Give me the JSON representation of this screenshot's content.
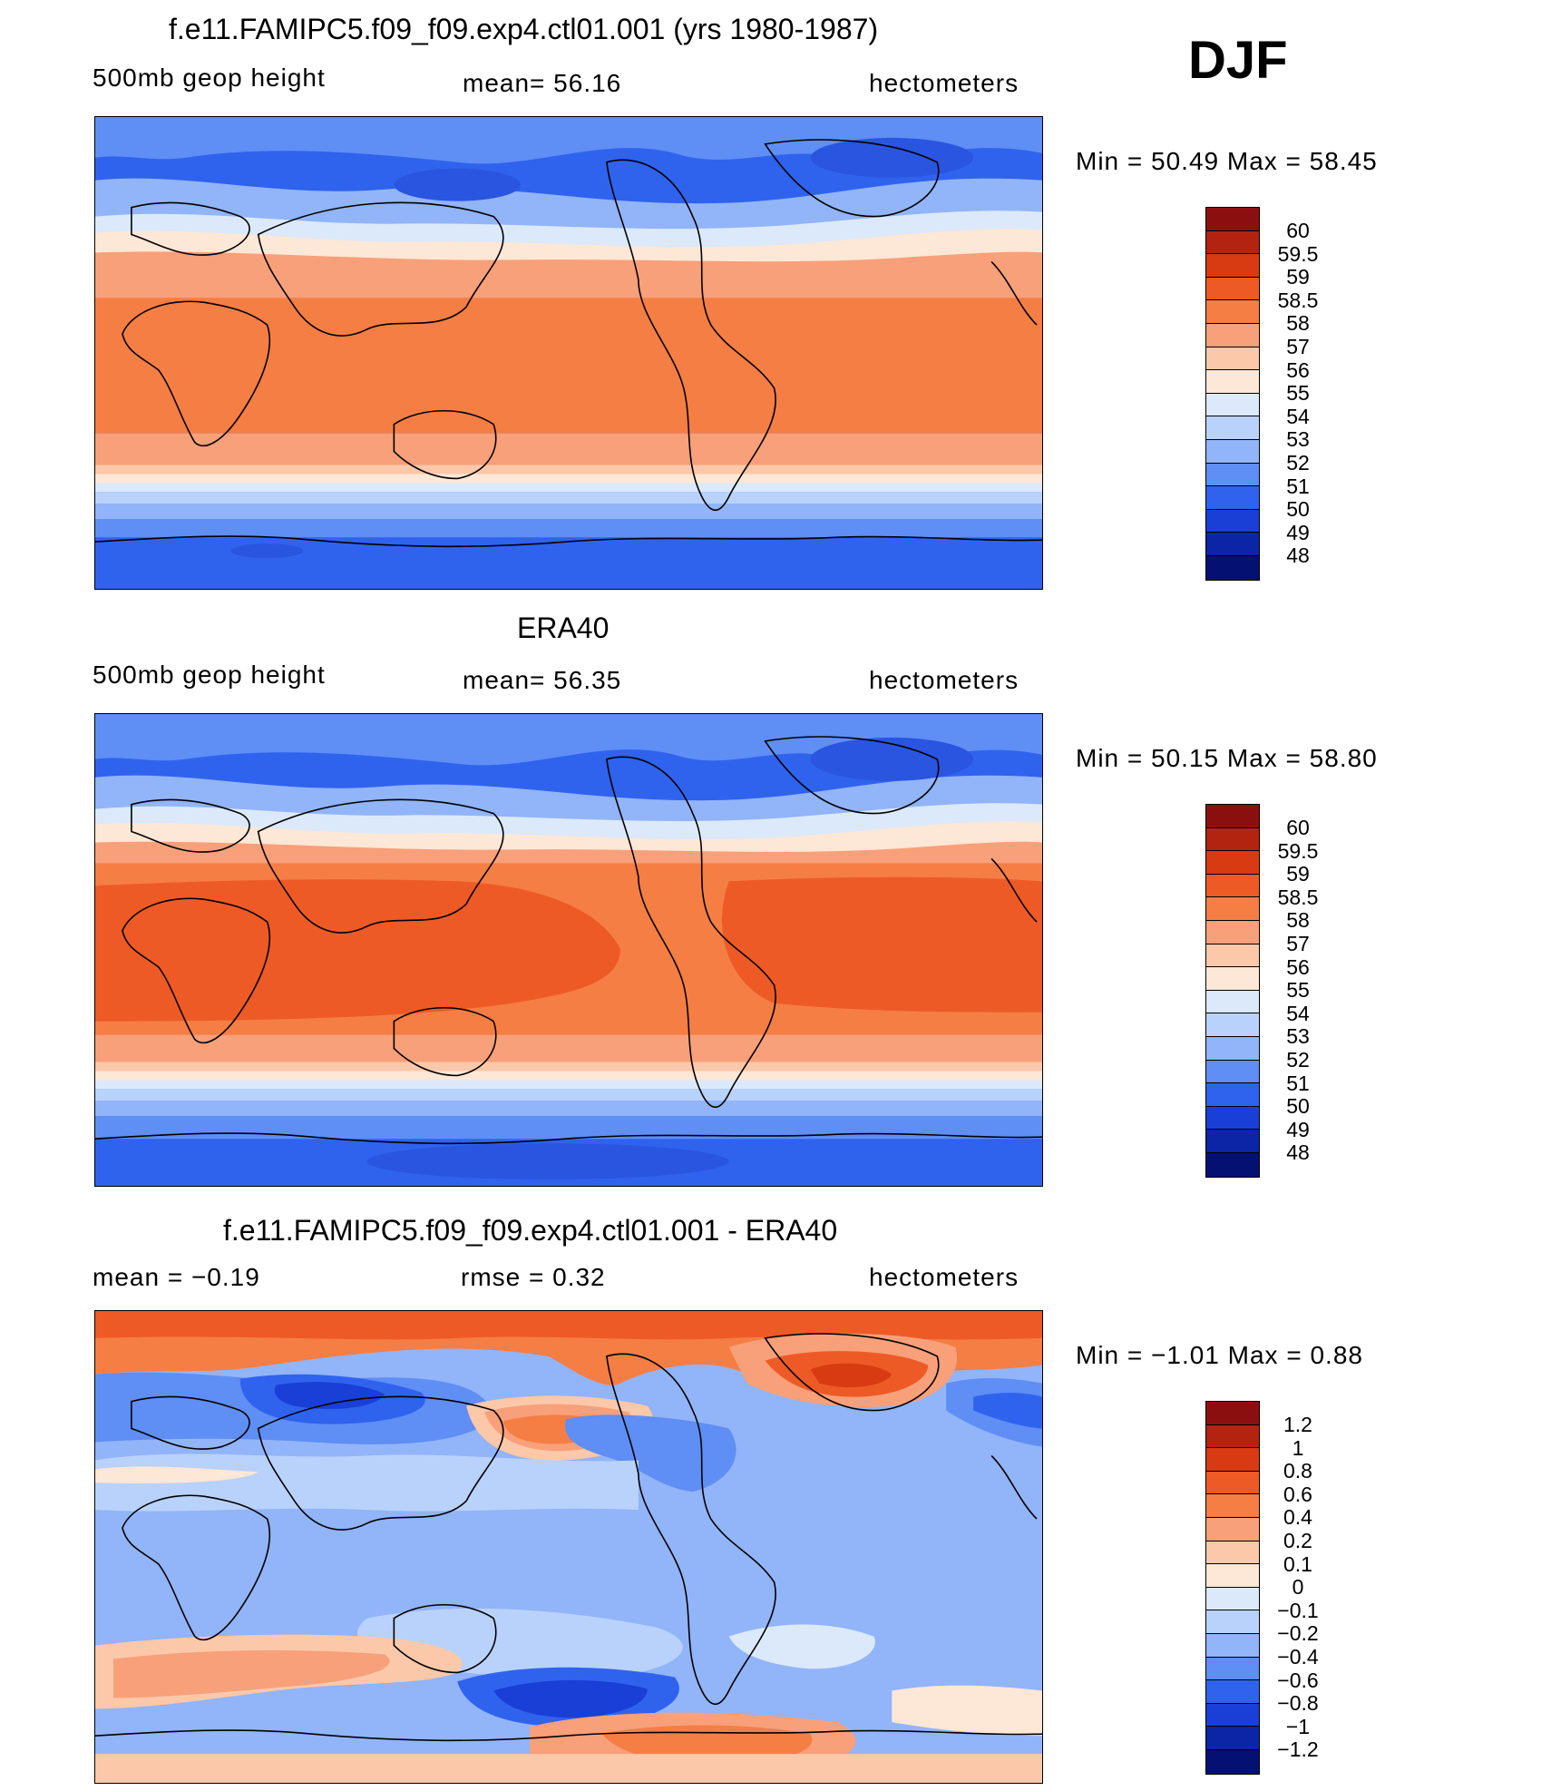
{
  "season": "DJF",
  "panels": [
    {
      "title": "f.e11.FAMIPC5.f09_f09.exp4.ctl01.001 (yrs 1980-1987)",
      "left_label": "500mb geop height",
      "mid_label": "mean=   56.16",
      "right_label": "hectometers",
      "minmax": "Min =   50.49  Max =   58.45",
      "colorbar_labels": [
        "60",
        "59.5",
        "59",
        "58.5",
        "58",
        "57",
        "56",
        "55",
        "54",
        "53",
        "52",
        "51",
        "50",
        "49",
        "48"
      ]
    },
    {
      "title": "ERA40",
      "left_label": "500mb geop height",
      "mid_label": "mean=   56.35",
      "right_label": "hectometers",
      "minmax": "Min =   50.15  Max =   58.80",
      "colorbar_labels": [
        "60",
        "59.5",
        "59",
        "58.5",
        "58",
        "57",
        "56",
        "55",
        "54",
        "53",
        "52",
        "51",
        "50",
        "49",
        "48"
      ]
    },
    {
      "title": "f.e11.FAMIPC5.f09_f09.exp4.ctl01.001 - ERA40",
      "left_label": "mean =   −0.19",
      "mid_label": "rmse =    0.32",
      "right_label": "hectometers",
      "minmax": "Min =   −1.01  Max =    0.88",
      "colorbar_labels": [
        "1.2",
        "1",
        "0.8",
        "0.6",
        "0.4",
        "0.2",
        "0.1",
        "0",
        "−0.1",
        "−0.2",
        "−0.4",
        "−0.6",
        "−0.8",
        "−1",
        "−1.2"
      ]
    }
  ],
  "colors": {
    "colorbar": [
      "#8c0f0f",
      "#b32410",
      "#d83a12",
      "#ee5a26",
      "#f57e45",
      "#f8a07a",
      "#fbc8aa",
      "#fde7d6",
      "#dbe9fb",
      "#b9d2fb",
      "#92b4f8",
      "#5f8ef4",
      "#2f63ee",
      "#1a3fd6",
      "#0c24a6",
      "#051073"
    ]
  }
}
